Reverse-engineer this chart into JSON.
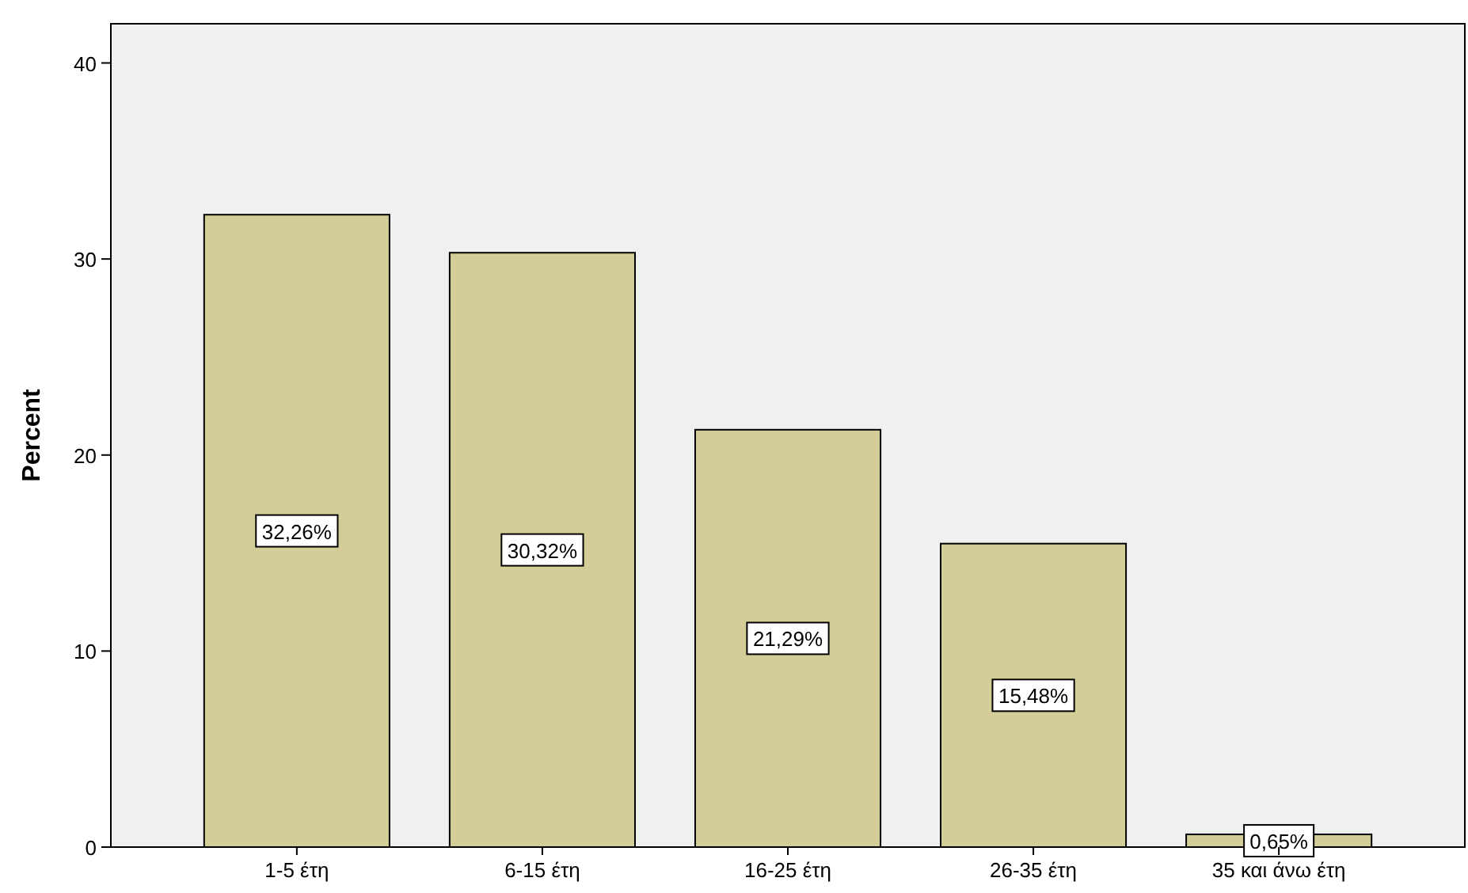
{
  "chart_data": {
    "type": "bar",
    "ylabel": "Percent",
    "categories": [
      "1-5 έτη",
      "6-15 έτη",
      "16-25 έτη",
      "26-35 έτη",
      "35 και άνω έτη"
    ],
    "values": [
      32.26,
      30.32,
      21.29,
      15.48,
      0.65
    ],
    "value_labels": [
      "32,26%",
      "30,32%",
      "21,29%",
      "15,48%",
      "0,65%"
    ],
    "color": "#d3ce98",
    "ylim": [
      0,
      42
    ],
    "yticks": [
      0,
      10,
      20,
      30,
      40
    ],
    "grid": false
  }
}
